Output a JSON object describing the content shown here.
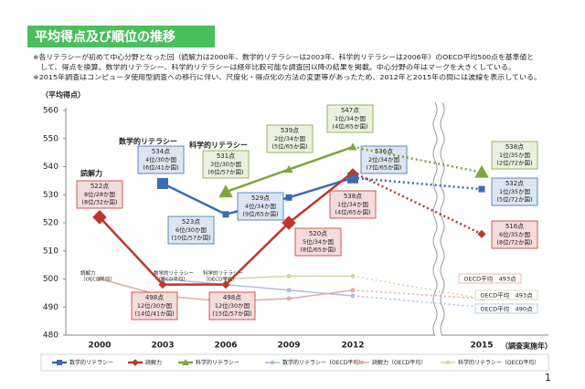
{
  "chart_data": {
    "type": "line",
    "title": "平均得点及び順位の推移",
    "notes": [
      "※各リテラシーが初めて中心分野となった回（読解力は2000年、数学的リテラシーは2003年、科学的リテラシーは2006年）のOECD平均500点を基準値と",
      "　して、得点を換算。数学的リテラシー、科学的リテラシーは経年比較可能な調査回以降の結果を掲載。中心分野の年はマークを大きくしている。",
      "※2015年調査はコンピュータ使用型調査への移行に伴い、尺度化・得点化の方法の変更等があったため、2012年と2015年の間には波線を表示している。"
    ],
    "y_label": "（平均得点）",
    "x_label": "（調査実施年）",
    "categories": [
      "2000",
      "2003",
      "2006",
      "2009",
      "2012",
      "2015"
    ],
    "ylim": [
      480,
      560
    ],
    "yticks": [
      480,
      490,
      500,
      510,
      520,
      530,
      540,
      550,
      560
    ],
    "grid": false,
    "series": [
      {
        "name": "数学的リテラシー",
        "color": "#3a6db5",
        "marker": "square",
        "emphasis": [
          1,
          4
        ],
        "values": [
          null,
          534,
          523,
          529,
          536,
          532
        ],
        "value_labels": [
          null,
          "534点",
          "523点",
          "529点",
          "536点",
          "532点"
        ],
        "rank_labels": [
          null,
          [
            "4位/30か国",
            "(6位/41か国)"
          ],
          [
            "6位/30か国",
            "(10位/57か国)"
          ],
          [
            "4位/34か国",
            "(9位/65か国)"
          ],
          [
            "2位/34か国",
            "(7位/65か国)"
          ],
          [
            "1位/35か国",
            "(5位/72か国)"
          ]
        ]
      },
      {
        "name": "読解力",
        "color": "#c0362c",
        "marker": "diamond",
        "emphasis": [
          0,
          3
        ],
        "values": [
          522,
          498,
          498,
          520,
          538,
          516
        ],
        "value_labels": [
          "522点",
          "498点",
          "498点",
          "520点",
          "538点",
          "516点"
        ],
        "rank_labels": [
          [
            "8位/28か国",
            "(8位/32か国)"
          ],
          [
            "12位/30か国",
            "(14位/41か国)"
          ],
          [
            "12位/30か国",
            "(15位/57か国)"
          ],
          [
            "5位/34か国",
            "(8位/65か国)"
          ],
          [
            "1位/34か国",
            "(4位/65か国)"
          ],
          [
            "6位/35か国",
            "(8位/72か国)"
          ]
        ]
      },
      {
        "name": "科学的リテラシー",
        "color": "#7fa63a",
        "marker": "triangle",
        "emphasis": [
          2,
          5
        ],
        "values": [
          null,
          null,
          531,
          539,
          547,
          538
        ],
        "value_labels": [
          null,
          null,
          "531点",
          "539点",
          "547点",
          "538点"
        ],
        "rank_labels": [
          null,
          null,
          [
            "3位/30か国",
            "(6位/57か国)"
          ],
          [
            "2位/34か国",
            "(5位/65か国)"
          ],
          [
            "1位/34か国",
            "(4位/65か国)"
          ],
          [
            "1位/35か国",
            "(2位/72か国)"
          ]
        ]
      },
      {
        "name": "数学的リテラシー（OECD平均）",
        "color": "#a9bedc",
        "marker": "circle",
        "values": [
          null,
          500,
          498,
          496,
          494,
          490
        ],
        "value_labels": [
          null,
          null,
          null,
          null,
          null,
          "OECD平均　490点"
        ]
      },
      {
        "name": "読解力（OECD平均）",
        "color": "#e6a9a4",
        "marker": "circle",
        "values": [
          500,
          494,
          492,
          493,
          496,
          493
        ],
        "value_labels": [
          null,
          null,
          null,
          null,
          null,
          "OECD平均　493点"
        ]
      },
      {
        "name": "科学的リテラシー（OECD平均）",
        "color": "#c8dba6",
        "marker": "circle",
        "values": [
          null,
          null,
          500,
          501,
          501,
          493
        ],
        "value_labels": [
          null,
          null,
          null,
          null,
          null,
          "OECD平均　493点"
        ]
      }
    ]
  },
  "page_number": "1"
}
